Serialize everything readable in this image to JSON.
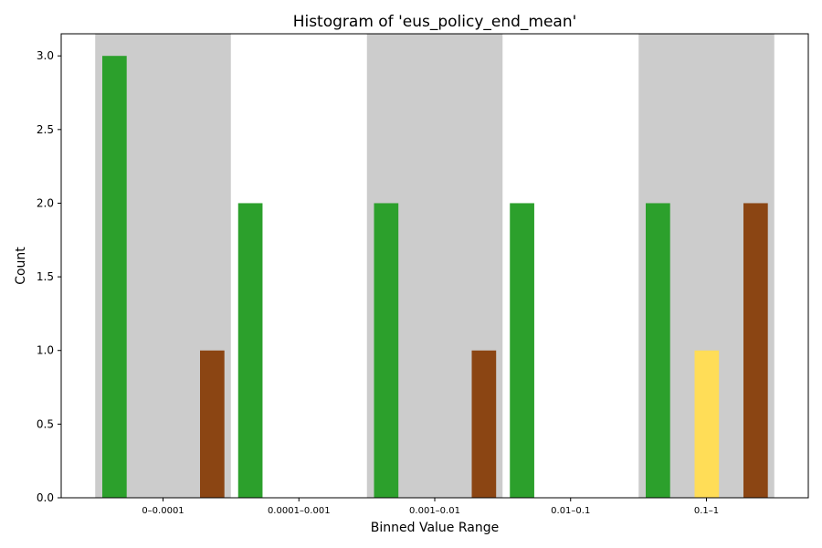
{
  "chart_data": {
    "type": "bar",
    "title": "Histogram of 'eus_policy_end_mean'",
    "xlabel": "Binned Value Range",
    "ylabel": "Count",
    "categories": [
      "0–0.0001",
      "0.0001–0.001",
      "0.001–0.01",
      "0.01–0.1",
      "0.1–1"
    ],
    "ylim": [
      0,
      3.15
    ],
    "yticks": [
      "0.0",
      "0.5",
      "1.0",
      "1.5",
      "2.0",
      "2.5",
      "3.0"
    ],
    "grid": false,
    "band_shading": {
      "color": "#cccccc",
      "shaded_categories": [
        "0–0.0001",
        "0.001–0.01",
        "0.1–1"
      ]
    },
    "series": [
      {
        "color": "#2ca02c",
        "values": [
          3,
          2,
          2,
          2,
          2
        ]
      },
      {
        "color": "#ffdd57",
        "values": [
          0,
          0,
          0,
          0,
          1
        ]
      },
      {
        "color": "#8b4513",
        "values": [
          1,
          0,
          1,
          0,
          2
        ]
      }
    ]
  }
}
